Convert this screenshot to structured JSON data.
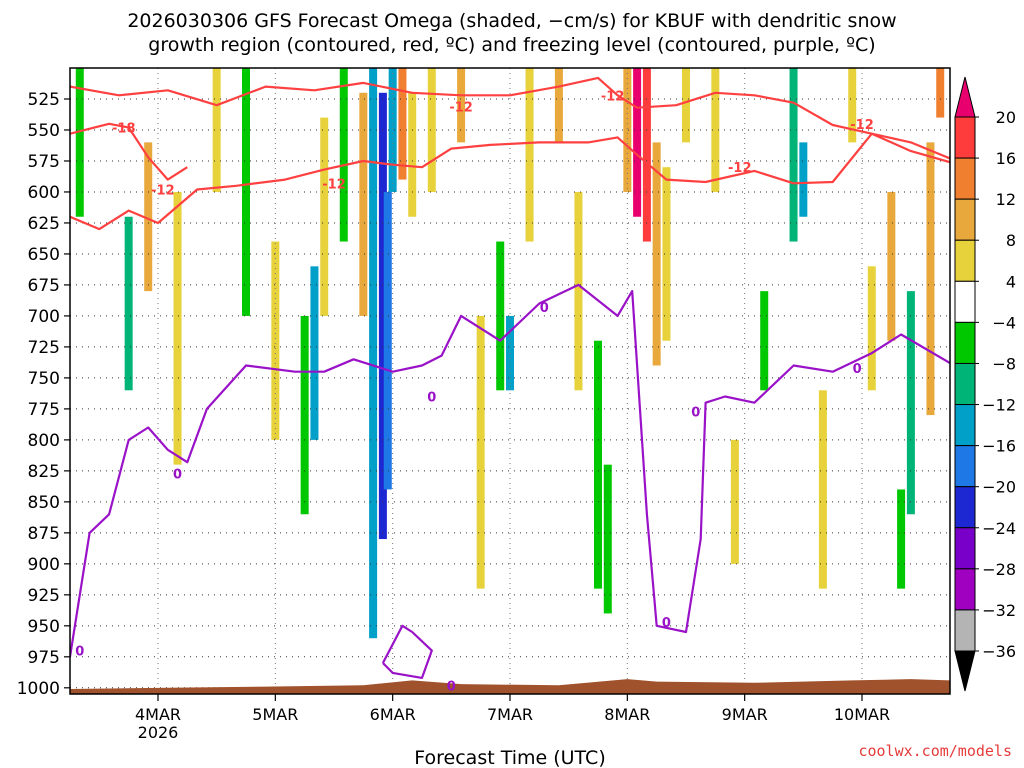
{
  "chart_data": {
    "type": "heatmap",
    "title_line1": "2026030306 GFS Forecast Omega (shaded, −cm/s) for KBUF with dendritic snow",
    "title_line2": "growth region (contoured, red, ºC) and freezing level (contoured, purple, ºC)",
    "xlabel": "Forecast Time (UTC)",
    "x_ticks": [
      {
        "label": "4MAR",
        "sub": "2026",
        "hours": 18
      },
      {
        "label": "5MAR",
        "sub": "",
        "hours": 42
      },
      {
        "label": "6MAR",
        "sub": "",
        "hours": 66
      },
      {
        "label": "7MAR",
        "sub": "",
        "hours": 90
      },
      {
        "label": "8MAR",
        "sub": "",
        "hours": 114
      },
      {
        "label": "9MAR",
        "sub": "",
        "hours": 138
      },
      {
        "label": "10MAR",
        "sub": "",
        "hours": 162
      }
    ],
    "x_range_hours": [
      0,
      180
    ],
    "y_label_unit": "hPa",
    "y_ticks": [
      525,
      550,
      575,
      600,
      625,
      650,
      675,
      700,
      725,
      750,
      775,
      800,
      825,
      850,
      875,
      900,
      925,
      950,
      975,
      1000
    ],
    "y_range": [
      500,
      1005
    ],
    "colorbar": {
      "labels": [
        "20",
        "16",
        "12",
        "8",
        "4",
        "−4",
        "−8",
        "−12",
        "−16",
        "−20",
        "−24",
        "−28",
        "−32",
        "−36"
      ],
      "colors": [
        "#e8006e",
        "#ff3c3c",
        "#f08030",
        "#e8a83c",
        "#e8d23c",
        "#ffffff",
        "#00c800",
        "#00b478",
        "#00a0c8",
        "#1e78e6",
        "#1e28d2",
        "#7800c8",
        "#a000c0",
        "#b4b4b4",
        "#000000"
      ]
    },
    "series": [
      {
        "name": "dendritic growth -12 upper",
        "color": "#ff4040",
        "points": [
          [
            0,
            515
          ],
          [
            10,
            522
          ],
          [
            20,
            518
          ],
          [
            30,
            530
          ],
          [
            40,
            515
          ],
          [
            50,
            518
          ],
          [
            60,
            512
          ],
          [
            70,
            520
          ],
          [
            80,
            522
          ],
          [
            90,
            522
          ],
          [
            100,
            515
          ],
          [
            108,
            508
          ],
          [
            112,
            522
          ],
          [
            116,
            532
          ],
          [
            124,
            530
          ],
          [
            132,
            520
          ],
          [
            140,
            522
          ],
          [
            148,
            528
          ],
          [
            156,
            546
          ],
          [
            164,
            553
          ],
          [
            172,
            560
          ],
          [
            180,
            573
          ]
        ]
      },
      {
        "name": "dendritic growth -12 lower",
        "color": "#ff4040",
        "points": [
          [
            0,
            620
          ],
          [
            6,
            630
          ],
          [
            12,
            615
          ],
          [
            18,
            625
          ],
          [
            26,
            598
          ],
          [
            34,
            595
          ],
          [
            44,
            590
          ],
          [
            52,
            582
          ],
          [
            60,
            575
          ],
          [
            66,
            578
          ],
          [
            72,
            580
          ],
          [
            78,
            565
          ],
          [
            86,
            562
          ],
          [
            96,
            560
          ],
          [
            106,
            560
          ],
          [
            112,
            556
          ],
          [
            116,
            570
          ],
          [
            122,
            590
          ],
          [
            130,
            592
          ],
          [
            140,
            583
          ],
          [
            148,
            593
          ],
          [
            156,
            592
          ],
          [
            164,
            553
          ],
          [
            172,
            567
          ],
          [
            180,
            576
          ]
        ]
      },
      {
        "name": "dendritic growth -18",
        "color": "#ff4040",
        "points": [
          [
            0,
            553
          ],
          [
            8,
            545
          ],
          [
            12,
            548
          ],
          [
            16,
            572
          ],
          [
            20,
            590
          ],
          [
            24,
            580
          ]
        ]
      },
      {
        "name": "freezing level 0",
        "color": "#9a12c8",
        "points": [
          [
            0,
            975
          ],
          [
            4,
            875
          ],
          [
            8,
            860
          ],
          [
            12,
            800
          ],
          [
            16,
            790
          ],
          [
            20,
            808
          ],
          [
            24,
            818
          ],
          [
            28,
            775
          ],
          [
            36,
            740
          ],
          [
            46,
            745
          ],
          [
            52,
            745
          ],
          [
            58,
            735
          ],
          [
            66,
            745
          ],
          [
            72,
            740
          ],
          [
            76,
            732
          ],
          [
            80,
            700
          ],
          [
            88,
            720
          ],
          [
            96,
            690
          ],
          [
            104,
            675
          ],
          [
            112,
            700
          ],
          [
            115,
            680
          ],
          [
            118,
            860
          ],
          [
            120,
            950
          ],
          [
            126,
            955
          ],
          [
            129,
            880
          ],
          [
            130,
            770
          ],
          [
            134,
            765
          ],
          [
            140,
            770
          ],
          [
            148,
            740
          ],
          [
            156,
            745
          ],
          [
            164,
            730
          ],
          [
            170,
            715
          ],
          [
            180,
            738
          ]
        ]
      },
      {
        "name": "freezing level 0 near surface",
        "color": "#9a12c8",
        "points": [
          [
            64,
            980
          ],
          [
            68,
            950
          ],
          [
            70,
            955
          ],
          [
            74,
            970
          ],
          [
            72,
            992
          ],
          [
            66,
            988
          ],
          [
            64,
            980
          ]
        ]
      }
    ],
    "omega_bands": [
      {
        "hours": 2,
        "top": 500,
        "bottom": 620,
        "value": -8
      },
      {
        "hours": 12,
        "top": 620,
        "bottom": 760,
        "value": -12
      },
      {
        "hours": 16,
        "top": 560,
        "bottom": 680,
        "value": 8
      },
      {
        "hours": 22,
        "top": 600,
        "bottom": 820,
        "value": 6
      },
      {
        "hours": 30,
        "top": 500,
        "bottom": 600,
        "value": 4
      },
      {
        "hours": 36,
        "top": 500,
        "bottom": 700,
        "value": -8
      },
      {
        "hours": 42,
        "top": 640,
        "bottom": 800,
        "value": 4
      },
      {
        "hours": 48,
        "top": 700,
        "bottom": 860,
        "value": -8
      },
      {
        "hours": 50,
        "top": 660,
        "bottom": 800,
        "value": -16
      },
      {
        "hours": 52,
        "top": 540,
        "bottom": 700,
        "value": 6
      },
      {
        "hours": 56,
        "top": 500,
        "bottom": 640,
        "value": -8
      },
      {
        "hours": 60,
        "top": 520,
        "bottom": 700,
        "value": 8
      },
      {
        "hours": 62,
        "top": 500,
        "bottom": 960,
        "value": -16
      },
      {
        "hours": 64,
        "top": 520,
        "bottom": 880,
        "value": -24
      },
      {
        "hours": 65,
        "top": 600,
        "bottom": 840,
        "value": -20
      },
      {
        "hours": 66,
        "top": 500,
        "bottom": 600,
        "value": -16
      },
      {
        "hours": 68,
        "top": 500,
        "bottom": 590,
        "value": 12
      },
      {
        "hours": 70,
        "top": 520,
        "bottom": 620,
        "value": 6
      },
      {
        "hours": 74,
        "top": 500,
        "bottom": 600,
        "value": 4
      },
      {
        "hours": 80,
        "top": 500,
        "bottom": 560,
        "value": 8
      },
      {
        "hours": 84,
        "top": 700,
        "bottom": 920,
        "value": 4
      },
      {
        "hours": 88,
        "top": 640,
        "bottom": 760,
        "value": -8
      },
      {
        "hours": 90,
        "top": 700,
        "bottom": 760,
        "value": -16
      },
      {
        "hours": 94,
        "top": 500,
        "bottom": 640,
        "value": 4
      },
      {
        "hours": 100,
        "top": 500,
        "bottom": 560,
        "value": 8
      },
      {
        "hours": 104,
        "top": 600,
        "bottom": 760,
        "value": 4
      },
      {
        "hours": 108,
        "top": 720,
        "bottom": 920,
        "value": -8
      },
      {
        "hours": 110,
        "top": 820,
        "bottom": 940,
        "value": -8
      },
      {
        "hours": 114,
        "top": 500,
        "bottom": 600,
        "value": 8
      },
      {
        "hours": 116,
        "top": 500,
        "bottom": 620,
        "value": 20
      },
      {
        "hours": 118,
        "top": 500,
        "bottom": 640,
        "value": 16
      },
      {
        "hours": 120,
        "top": 560,
        "bottom": 740,
        "value": 8
      },
      {
        "hours": 122,
        "top": 580,
        "bottom": 720,
        "value": 4
      },
      {
        "hours": 126,
        "top": 500,
        "bottom": 560,
        "value": 4
      },
      {
        "hours": 132,
        "top": 500,
        "bottom": 600,
        "value": 4
      },
      {
        "hours": 136,
        "top": 800,
        "bottom": 900,
        "value": 4
      },
      {
        "hours": 142,
        "top": 680,
        "bottom": 760,
        "value": -8
      },
      {
        "hours": 148,
        "top": 500,
        "bottom": 640,
        "value": -12
      },
      {
        "hours": 150,
        "top": 560,
        "bottom": 620,
        "value": -16
      },
      {
        "hours": 154,
        "top": 760,
        "bottom": 920,
        "value": 6
      },
      {
        "hours": 160,
        "top": 500,
        "bottom": 560,
        "value": 4
      },
      {
        "hours": 164,
        "top": 660,
        "bottom": 760,
        "value": 6
      },
      {
        "hours": 168,
        "top": 600,
        "bottom": 720,
        "value": 8
      },
      {
        "hours": 170,
        "top": 840,
        "bottom": 920,
        "value": -8
      },
      {
        "hours": 172,
        "top": 680,
        "bottom": 860,
        "value": -12
      },
      {
        "hours": 176,
        "top": 560,
        "bottom": 780,
        "value": 8
      },
      {
        "hours": 178,
        "top": 500,
        "bottom": 540,
        "value": 12
      }
    ],
    "contour_labels": [
      {
        "text": "-18",
        "hours": 11,
        "p": 548,
        "color": "#ff4040"
      },
      {
        "text": "-12",
        "hours": 19,
        "p": 598,
        "color": "#ff4040"
      },
      {
        "text": "-12",
        "hours": 54,
        "p": 593,
        "color": "#ff4040"
      },
      {
        "text": "-12",
        "hours": 80,
        "p": 531,
        "color": "#ff4040"
      },
      {
        "text": "-12",
        "hours": 111,
        "p": 522,
        "color": "#ff4040"
      },
      {
        "text": "-12",
        "hours": 137,
        "p": 580,
        "color": "#ff4040"
      },
      {
        "text": "-12",
        "hours": 162,
        "p": 545,
        "color": "#ff4040"
      },
      {
        "text": "0",
        "hours": 22,
        "p": 827,
        "color": "#9a12c8"
      },
      {
        "text": "0",
        "hours": 2,
        "p": 970,
        "color": "#9a12c8"
      },
      {
        "text": "0",
        "hours": 74,
        "p": 765,
        "color": "#9a12c8"
      },
      {
        "text": "0",
        "hours": 97,
        "p": 693,
        "color": "#9a12c8"
      },
      {
        "text": "0",
        "hours": 122,
        "p": 947,
        "color": "#9a12c8"
      },
      {
        "text": "0",
        "hours": 128,
        "p": 777,
        "color": "#9a12c8"
      },
      {
        "text": "0",
        "hours": 161,
        "p": 742,
        "color": "#9a12c8"
      },
      {
        "text": "0",
        "hours": 78,
        "p": 998,
        "color": "#9a12c8"
      }
    ],
    "terrain_color": "#a0522d"
  },
  "credit": "coolwx.com/models"
}
